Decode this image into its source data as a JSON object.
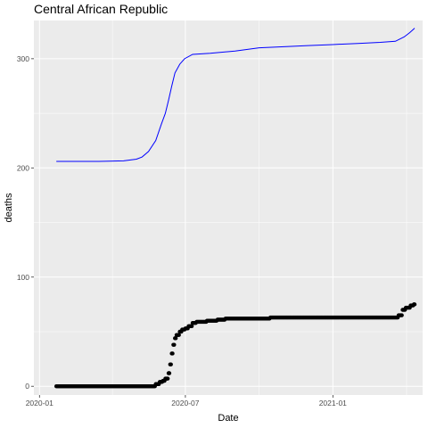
{
  "chart_data": {
    "type": "line",
    "title": "Central African Republic",
    "xlabel": "Date",
    "ylabel": "deaths",
    "xlim": [
      "2019-12-25",
      "2021-04-23"
    ],
    "ylim": [
      -8,
      335
    ],
    "x_ticks": [
      {
        "date": "2020-01-01",
        "label": "2020-01"
      },
      {
        "date": "2020-07-01",
        "label": "2020-07"
      },
      {
        "date": "2021-01-01",
        "label": "2021-01"
      }
    ],
    "y_ticks": [
      0,
      100,
      200,
      300
    ],
    "grid": true,
    "legend": "none",
    "series": [
      {
        "style": "line",
        "color": "#0000ff",
        "points": [
          [
            "2020-01-22",
            206
          ],
          [
            "2020-03-15",
            206
          ],
          [
            "2020-04-15",
            206.5
          ],
          [
            "2020-05-01",
            208
          ],
          [
            "2020-05-08",
            210
          ],
          [
            "2020-05-16",
            215
          ],
          [
            "2020-05-25",
            225
          ],
          [
            "2020-06-01",
            240
          ],
          [
            "2020-06-06",
            250
          ],
          [
            "2020-06-10",
            262
          ],
          [
            "2020-06-14",
            275
          ],
          [
            "2020-06-18",
            287
          ],
          [
            "2020-06-24",
            295
          ],
          [
            "2020-06-30",
            300
          ],
          [
            "2020-07-10",
            304
          ],
          [
            "2020-08-01",
            305
          ],
          [
            "2020-09-01",
            307
          ],
          [
            "2020-10-01",
            310
          ],
          [
            "2020-11-01",
            311
          ],
          [
            "2020-12-01",
            312
          ],
          [
            "2021-01-01",
            313
          ],
          [
            "2021-02-01",
            314
          ],
          [
            "2021-03-01",
            315
          ],
          [
            "2021-03-20",
            316
          ],
          [
            "2021-03-31",
            320
          ],
          [
            "2021-04-07",
            324
          ],
          [
            "2021-04-13",
            328
          ]
        ]
      },
      {
        "style": "points",
        "color": "#000000",
        "steps": [
          [
            "2020-01-22",
            0
          ],
          [
            "2020-05-25",
            2
          ],
          [
            "2020-05-30",
            4
          ],
          [
            "2020-06-03",
            5
          ],
          [
            "2020-06-06",
            7
          ],
          [
            "2020-06-10",
            12
          ],
          [
            "2020-06-12",
            20
          ],
          [
            "2020-06-14",
            30
          ],
          [
            "2020-06-16",
            38
          ],
          [
            "2020-06-18",
            44
          ],
          [
            "2020-06-20",
            47
          ],
          [
            "2020-06-24",
            50
          ],
          [
            "2020-06-27",
            52
          ],
          [
            "2020-07-01",
            53
          ],
          [
            "2020-07-05",
            55
          ],
          [
            "2020-07-10",
            58
          ],
          [
            "2020-07-15",
            59
          ],
          [
            "2020-07-28",
            60
          ],
          [
            "2020-08-10",
            61
          ],
          [
            "2020-08-20",
            62
          ],
          [
            "2020-10-15",
            63
          ],
          [
            "2021-03-15",
            63
          ],
          [
            "2021-03-24",
            65
          ],
          [
            "2021-03-29",
            70
          ],
          [
            "2021-04-02",
            72
          ],
          [
            "2021-04-08",
            74
          ],
          [
            "2021-04-12",
            75
          ],
          [
            "2021-04-13",
            75
          ]
        ]
      }
    ]
  }
}
